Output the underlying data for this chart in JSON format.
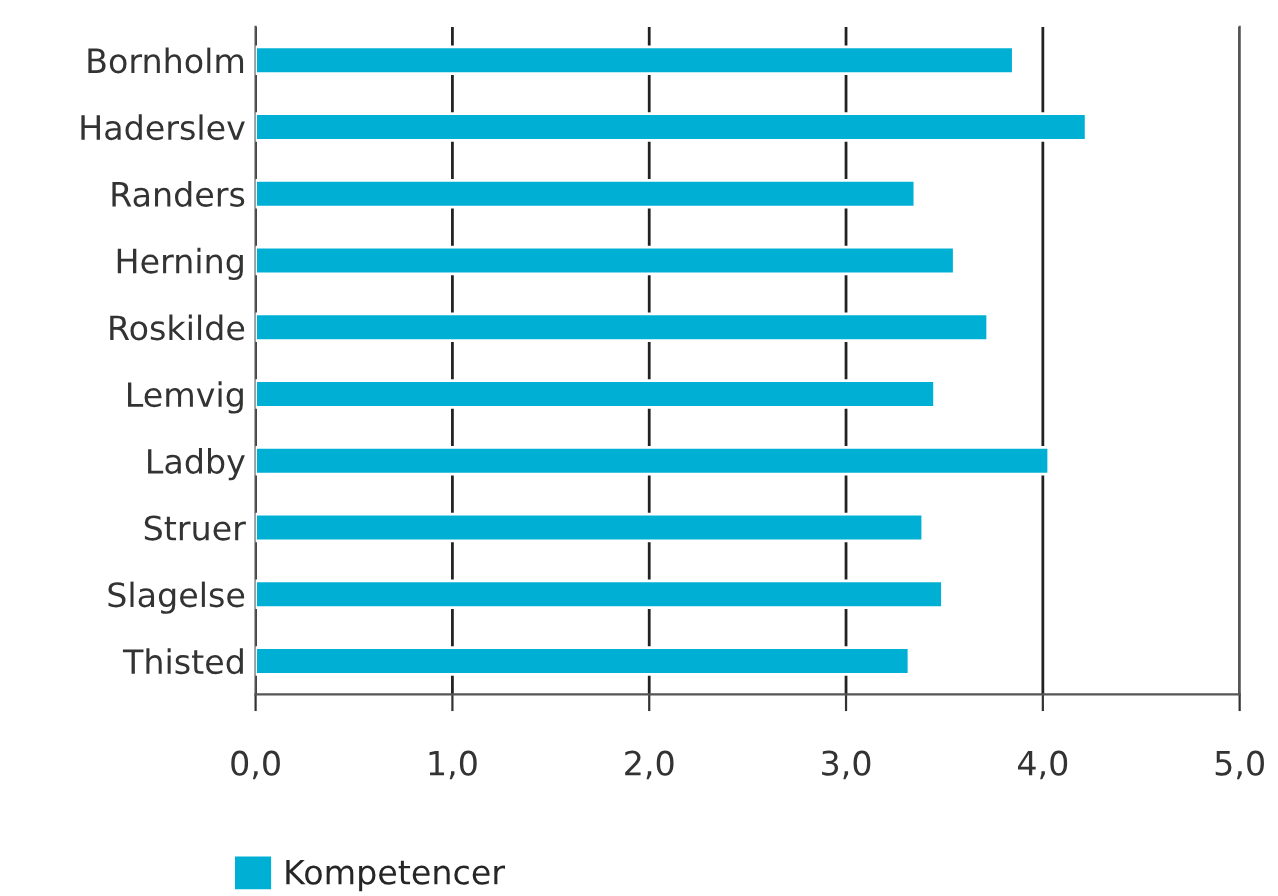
{
  "chart_data": {
    "type": "bar",
    "orientation": "horizontal",
    "categories": [
      "Bornholm",
      "Haderslev",
      "Randers",
      "Herning",
      "Roskilde",
      "Lemvig",
      "Ladby",
      "Struer",
      "Slagelse",
      "Thisted"
    ],
    "series": [
      {
        "name": "Kompetencer",
        "color": "#00b0d4",
        "values": [
          3.85,
          4.22,
          3.35,
          3.55,
          3.72,
          3.45,
          4.03,
          3.39,
          3.49,
          3.32
        ]
      }
    ],
    "xlim": [
      0,
      5
    ],
    "xticks": [
      {
        "value": 0,
        "label": "0,0"
      },
      {
        "value": 1,
        "label": "1,0"
      },
      {
        "value": 2,
        "label": "2,0"
      },
      {
        "value": 3,
        "label": "3,0"
      },
      {
        "value": 4,
        "label": "4,0"
      },
      {
        "value": 5,
        "label": "5,0"
      }
    ],
    "grid": "x",
    "legend": "bottom left"
  }
}
